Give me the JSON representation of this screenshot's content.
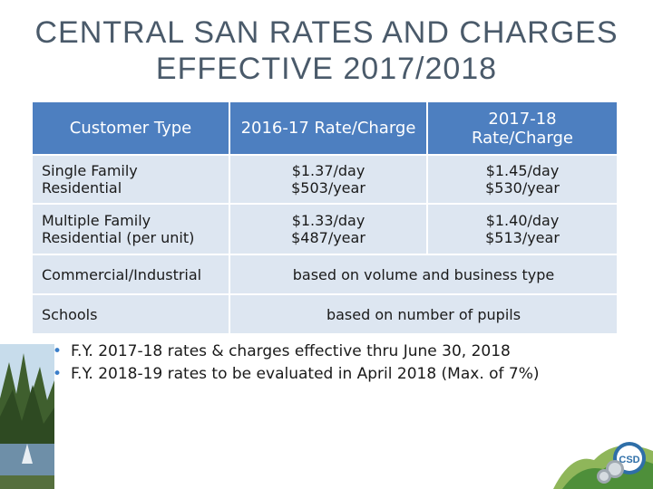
{
  "title": {
    "line1": "CENTRAL SAN RATES AND CHARGES",
    "line2": "EFFECTIVE 2017/2018"
  },
  "table": {
    "headers": [
      "Customer Type",
      "2016-17 Rate/Charge",
      "2017-18 Rate/Charge"
    ],
    "rows": [
      {
        "type": "Single Family Residential",
        "rate_2016_17": [
          "$1.37/day",
          "$503/year"
        ],
        "rate_2017_18": [
          "$1.45/day",
          "$530/year"
        ]
      },
      {
        "type": "Multiple Family Residential (per unit)",
        "rate_2016_17": [
          "$1.33/day",
          "$487/year"
        ],
        "rate_2017_18": [
          "$1.40/day",
          "$513/year"
        ]
      },
      {
        "type": "Commercial/Industrial",
        "merged": "based on volume and business type"
      },
      {
        "type": "Schools",
        "merged": "based on number of pupils"
      }
    ]
  },
  "bullets": [
    "F.Y. 2017-18 rates & charges effective thru June 30, 2018",
    "F.Y. 2018-19 rates to be evaluated in April 2018 (Max. of 7%)"
  ],
  "logo": {
    "text": "CSD"
  },
  "colors": {
    "header_bg": "#4d7fc0",
    "row_bg": "#dde6f1",
    "title": "#4a5a6a",
    "bullet": "#3a7ec9"
  }
}
